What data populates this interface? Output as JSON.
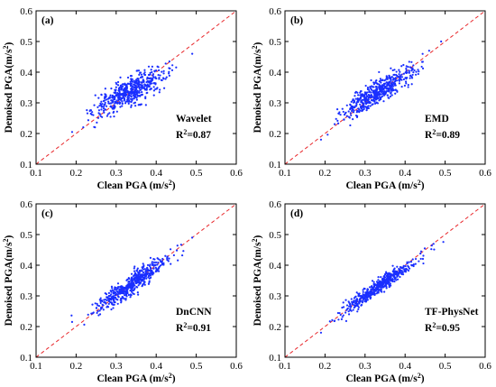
{
  "figure": {
    "description_panels": 4
  },
  "chart_data": [
    {
      "type": "scatter",
      "panel": "(a)",
      "method": "Wavelet",
      "r2_label": "R²=0.87",
      "xlabel": "Clean PGA (m/s²)",
      "ylabel": "Denoised PGA(m/s²)",
      "xlim": [
        0.1,
        0.6
      ],
      "ylim": [
        0.1,
        0.6
      ],
      "xticks": [
        "0.1",
        "0.2",
        "0.3",
        "0.4",
        "0.5",
        "0.6"
      ],
      "yticks": [
        "0.1",
        "0.2",
        "0.3",
        "0.4",
        "0.5",
        "0.6"
      ],
      "reference_line": "y = x (red dashed)",
      "point_color": "#1a2fff",
      "line_color": "#e8262a",
      "point_cloud": {
        "n": 520,
        "x_mean": 0.335,
        "x_sd": 0.045,
        "slope": 0.62,
        "intercept": 0.13,
        "noise": 0.022
      },
      "outliers": [
        [
          0.19,
          0.205
        ],
        [
          0.24,
          0.27
        ],
        [
          0.49,
          0.46
        ]
      ]
    },
    {
      "type": "scatter",
      "panel": "(b)",
      "method": "EMD",
      "r2_label": "R²=0.89",
      "xlabel": "Clean PGA (m/s²)",
      "ylabel": "Denoised PGA(m/s²)",
      "xlim": [
        0.1,
        0.6
      ],
      "ylim": [
        0.1,
        0.6
      ],
      "xticks": [
        "0.1",
        "0.2",
        "0.3",
        "0.4",
        "0.5",
        "0.6"
      ],
      "yticks": [
        "0.1",
        "0.2",
        "0.3",
        "0.4",
        "0.5",
        "0.6"
      ],
      "reference_line": "y = x (red dashed)",
      "point_color": "#1a2fff",
      "line_color": "#e8262a",
      "point_cloud": {
        "n": 520,
        "x_mean": 0.335,
        "x_sd": 0.045,
        "slope": 0.78,
        "intercept": 0.075,
        "noise": 0.02
      },
      "outliers": [
        [
          0.19,
          0.18
        ],
        [
          0.49,
          0.5
        ],
        [
          0.46,
          0.47
        ]
      ]
    },
    {
      "type": "scatter",
      "panel": "(c)",
      "method": "DnCNN",
      "r2_label": "R²=0.91",
      "xlabel": "Clean PGA (m/s²)",
      "ylabel": "Denoised PGA(m/s²)",
      "xlim": [
        0.1,
        0.6
      ],
      "ylim": [
        0.1,
        0.6
      ],
      "xticks": [
        "0.1",
        "0.2",
        "0.3",
        "0.4",
        "0.5",
        "0.6"
      ],
      "yticks": [
        "0.1",
        "0.2",
        "0.3",
        "0.4",
        "0.5",
        "0.6"
      ],
      "reference_line": "y = x (red dashed)",
      "point_color": "#1a2fff",
      "line_color": "#e8262a",
      "point_cloud": {
        "n": 520,
        "x_mean": 0.335,
        "x_sd": 0.045,
        "slope": 0.88,
        "intercept": 0.04,
        "noise": 0.017
      },
      "outliers": [
        [
          0.19,
          0.215
        ],
        [
          0.49,
          0.49
        ],
        [
          0.26,
          0.24
        ]
      ]
    },
    {
      "type": "scatter",
      "panel": "(d)",
      "method": "TF-PhysNet",
      "r2_label": "R²=0.95",
      "xlabel": "Clean PGA (m/s²)",
      "ylabel": "Denoised PGA(m/s²)",
      "xlim": [
        0.1,
        0.6
      ],
      "ylim": [
        0.1,
        0.6
      ],
      "xticks": [
        "0.1",
        "0.2",
        "0.3",
        "0.4",
        "0.5",
        "0.6"
      ],
      "yticks": [
        "0.1",
        "0.2",
        "0.3",
        "0.4",
        "0.5",
        "0.6"
      ],
      "reference_line": "y = x (red dashed)",
      "point_color": "#1a2fff",
      "line_color": "#e8262a",
      "point_cloud": {
        "n": 520,
        "x_mean": 0.335,
        "x_sd": 0.045,
        "slope": 0.93,
        "intercept": 0.02,
        "noise": 0.012
      },
      "outliers": [
        [
          0.19,
          0.18
        ],
        [
          0.44,
          0.445
        ],
        [
          0.26,
          0.24
        ]
      ]
    }
  ]
}
